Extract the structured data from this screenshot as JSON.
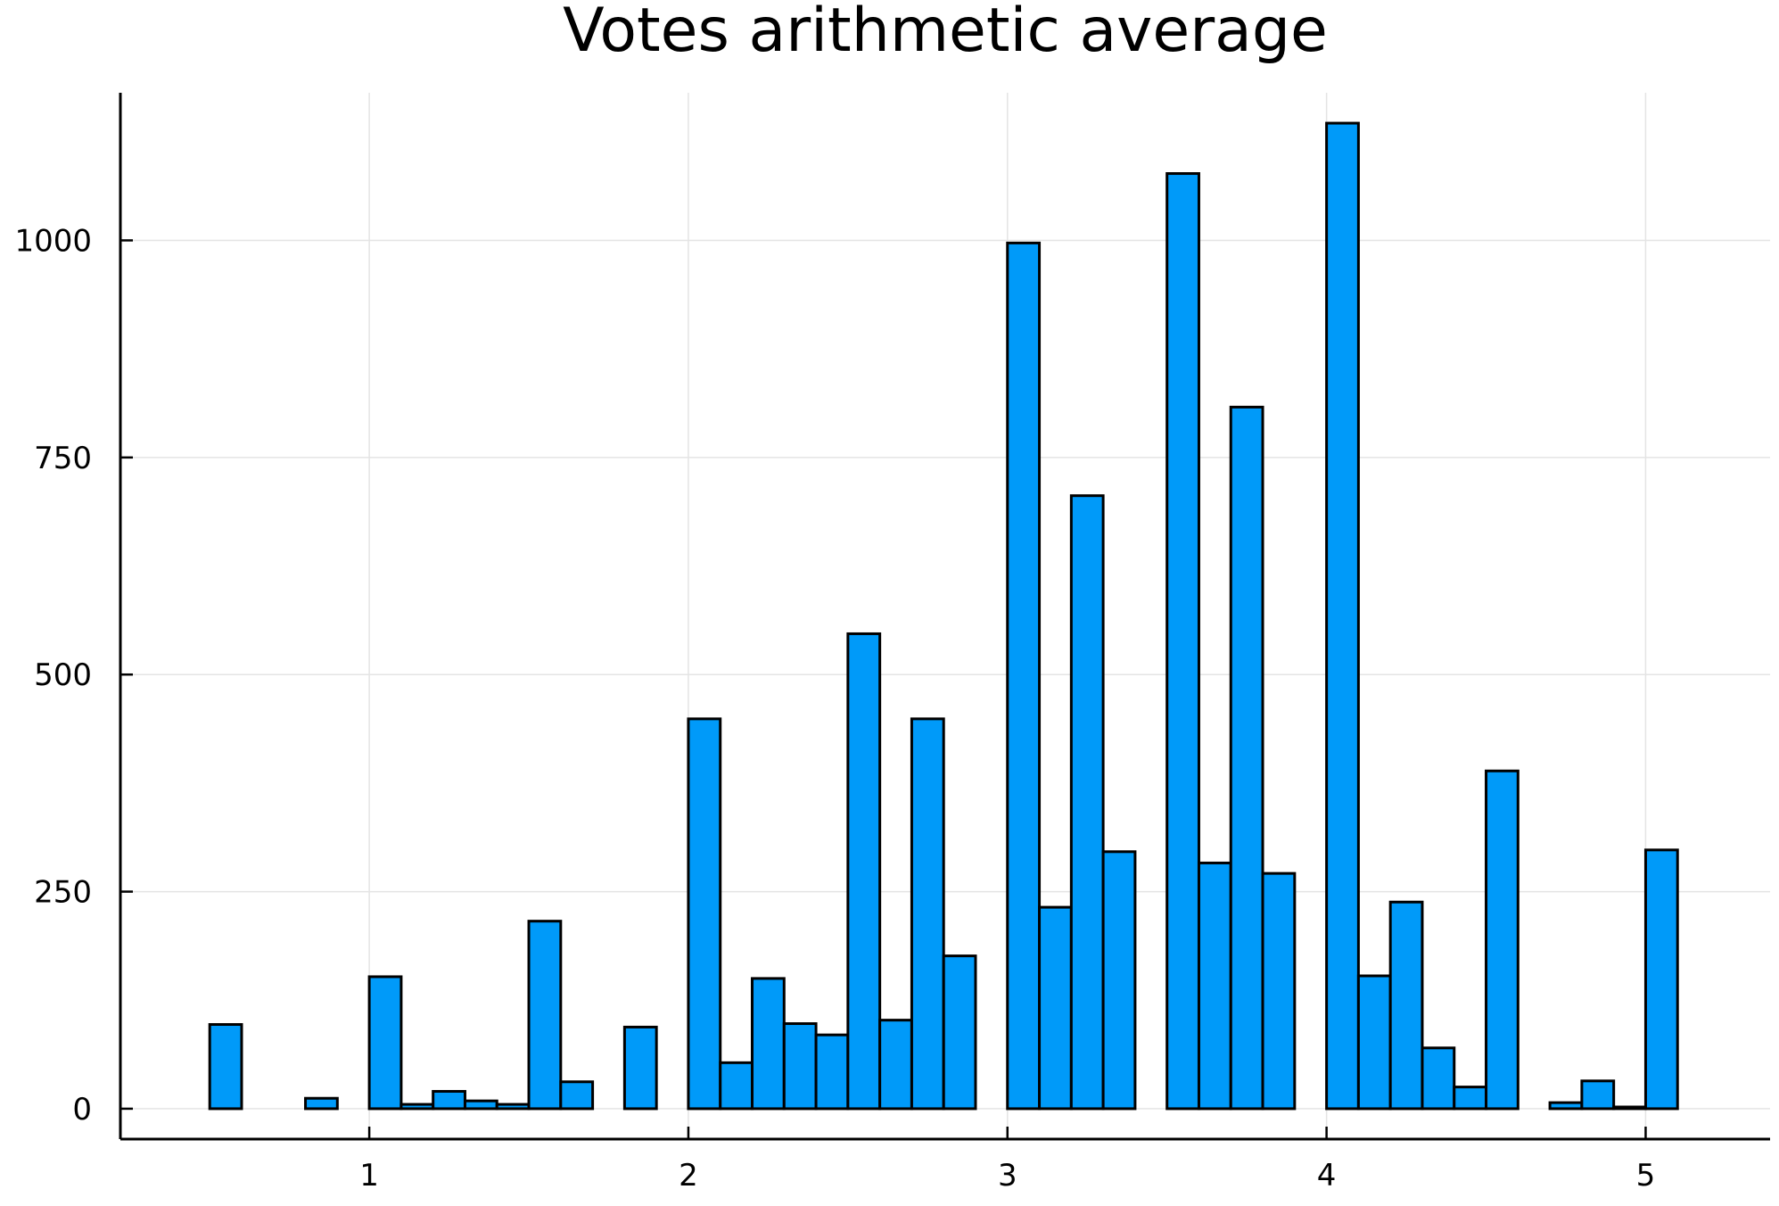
{
  "chart_data": {
    "type": "bar",
    "title": "Votes arithmetic average",
    "xlabel": "",
    "ylabel": "",
    "bin_width": 0.1,
    "bins_start": [
      0.5,
      0.6,
      0.7,
      0.8,
      0.9,
      1.0,
      1.1,
      1.2,
      1.3,
      1.4,
      1.5,
      1.6,
      1.7,
      1.8,
      1.9,
      2.0,
      2.1,
      2.2,
      2.3,
      2.4,
      2.5,
      2.6,
      2.7,
      2.8,
      2.9,
      3.0,
      3.1,
      3.2,
      3.3,
      3.4,
      3.5,
      3.6,
      3.7,
      3.8,
      3.9,
      4.0,
      4.1,
      4.2,
      4.3,
      4.4,
      4.5,
      4.6,
      4.7,
      4.8,
      4.9,
      5.0
    ],
    "values": [
      97,
      0,
      0,
      12,
      0,
      152,
      5,
      20,
      9,
      5,
      216,
      31,
      0,
      94,
      0,
      449,
      53,
      150,
      98,
      85,
      547,
      102,
      449,
      176,
      0,
      997,
      232,
      706,
      296,
      0,
      1077,
      283,
      808,
      271,
      0,
      1135,
      153,
      238,
      70,
      25,
      389,
      0,
      7,
      32,
      2,
      298
    ],
    "xlim": [
      0.22,
      5.39
    ],
    "ylim": [
      -35,
      1170
    ],
    "x_ticks": [
      1,
      2,
      3,
      4,
      5
    ],
    "x_tick_labels": [
      "1",
      "2",
      "3",
      "4",
      "5"
    ],
    "y_ticks": [
      0,
      250,
      500,
      750,
      1000
    ],
    "y_tick_labels": [
      "0",
      "250",
      "500",
      "750",
      "1000"
    ],
    "grid": true,
    "legend": "none",
    "bar_color": "#009af9",
    "edge_color": "#000000"
  }
}
